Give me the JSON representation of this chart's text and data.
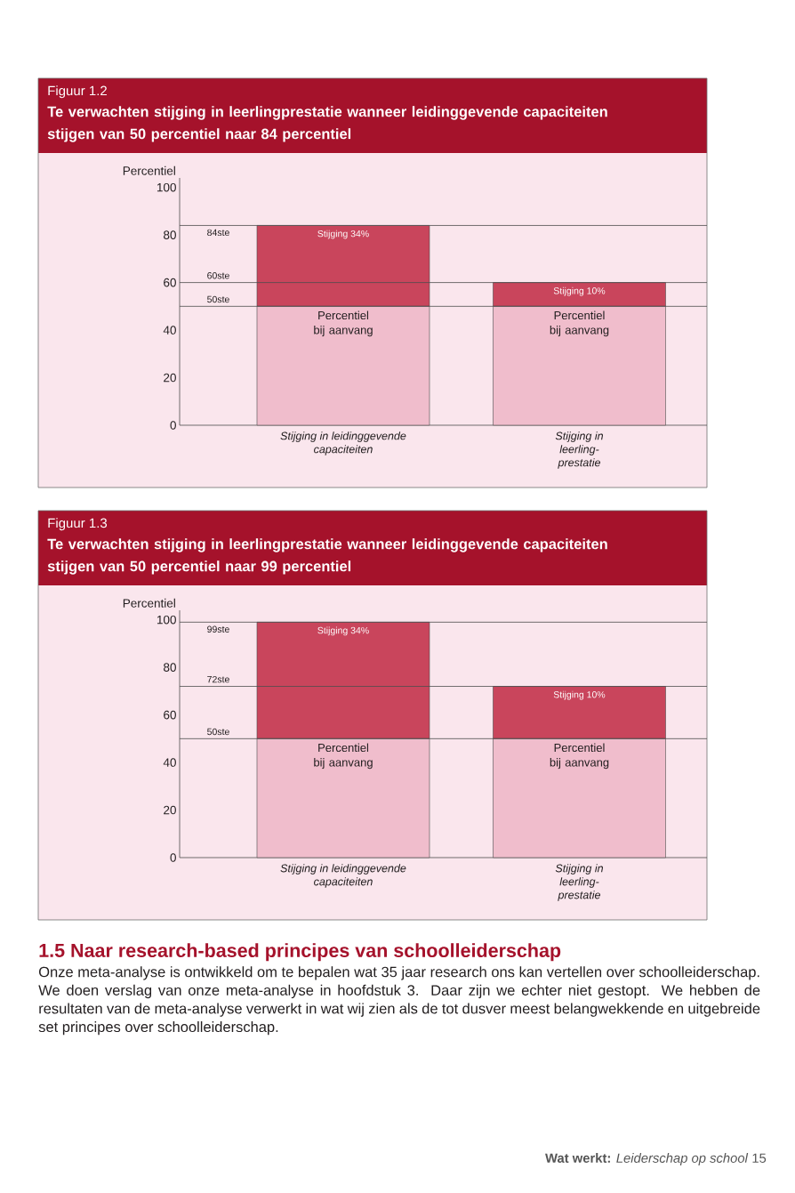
{
  "chart_data": [
    {
      "type": "bar",
      "stacked": true,
      "title": "Figuur 1.2",
      "subtitle": "Te verwachten stijging in leerlingprestatie wanneer leidinggevende capaciteiten stijgen van 50 percentiel naar 84 percentiel",
      "ylabel": "Percentiel",
      "categories": [
        "Stijging in leidinggevende capaciteiten",
        "Stijging in leerling-prestatie"
      ],
      "series": [
        {
          "name": "Percentiel bij aanvang",
          "color": "#f0bdcc",
          "values": [
            50,
            50
          ]
        },
        {
          "color": "#c9455c",
          "values": [
            34,
            10
          ],
          "value_labels": [
            "Stijging 34%",
            "Stijging 10%"
          ]
        }
      ],
      "ylim": [
        0,
        104
      ],
      "yticks": [
        0,
        20,
        40,
        60,
        80,
        100
      ],
      "ref_lines": [
        {
          "axis": "y",
          "value": 84,
          "label": "84ste"
        },
        {
          "axis": "y",
          "value": 60,
          "label": "60ste"
        },
        {
          "axis": "y",
          "value": 50,
          "label": "50ste"
        }
      ]
    },
    {
      "type": "bar",
      "stacked": true,
      "title": "Figuur 1.3",
      "subtitle": "Te verwachten stijging in leerlingprestatie wanneer leidinggevende capaciteiten stijgen van 50 percentiel naar 99 percentiel",
      "ylabel": "Percentiel",
      "categories": [
        "Stijging in leidinggevende capaciteiten",
        "Stijging in leerling-prestatie"
      ],
      "series": [
        {
          "name": "Percentiel bij aanvang",
          "color": "#f0bdcc",
          "values": [
            50,
            50
          ]
        },
        {
          "color": "#c9455c",
          "values": [
            49,
            22
          ],
          "value_labels": [
            "Stijging 34%",
            "Stijging 10%"
          ]
        }
      ],
      "ylim": [
        0,
        104
      ],
      "yticks": [
        0,
        20,
        40,
        60,
        80,
        100
      ],
      "ref_lines": [
        {
          "axis": "y",
          "value": 99,
          "label": "99ste"
        },
        {
          "axis": "y",
          "value": 72,
          "label": "72ste"
        },
        {
          "axis": "y",
          "value": 50,
          "label": "50ste"
        }
      ]
    },
    {
      "type": "other",
      "title": "1.5 Naar research-based principes van schoolleiderschap",
      "annotations": [
        "Onze meta-analyse is ontwikkeld om te bepalen wat 35 jaar research ons kan vertellen over schoolleiderschap. We doen verslag van onze meta-analyse in hoofdstuk 3. Daar zijn we echter niet gestopt. We hebben de resultaten van de meta-analyse verwerkt in wat wij zien als de tot dusver meest belangwekkende en uitgebreide set principes over schoolleiderschap.",
        "**Wat werkt:** *Leiderschap op school* 15"
      ]
    }
  ]
}
